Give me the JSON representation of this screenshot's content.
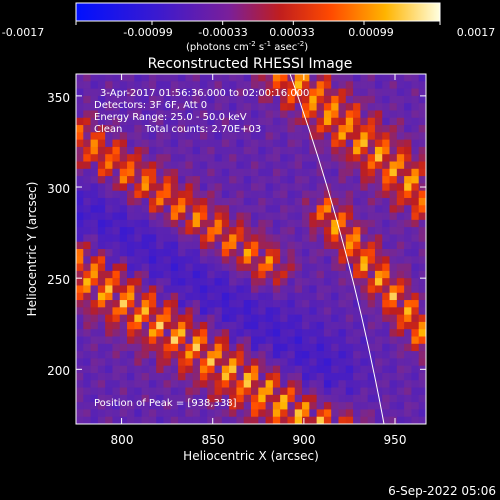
{
  "colorbar": {
    "tick_labels": [
      "-0.0017",
      "-0.00099",
      "-0.00033",
      "0.00033",
      "0.00099",
      "0.0017"
    ],
    "tick_values": [
      -0.0017,
      -0.00099,
      -0.00033,
      0.00033,
      0.00099,
      0.0017
    ],
    "range": [
      -0.0017,
      0.0017
    ],
    "unit_main": "(photons cm",
    "unit_exp1": "-2",
    "unit_mid1": " s",
    "unit_exp2": "-1",
    "unit_mid2": " asec",
    "unit_exp3": "-2",
    "unit_close": ")"
  },
  "chart_data": {
    "type": "heatmap",
    "title": "Reconstructed RHESSI Image",
    "xlabel": "Heliocentric X (arcsec)",
    "ylabel": "Heliocentric Y (arcsec)",
    "xlim": [
      775,
      967
    ],
    "ylim": [
      170,
      362
    ],
    "x_ticks": [
      800,
      850,
      900,
      950
    ],
    "x_tick_labels": [
      "800",
      "850",
      "900",
      "950"
    ],
    "y_ticks": [
      200,
      250,
      300,
      350
    ],
    "y_tick_labels": [
      "200",
      "250",
      "300",
      "350"
    ],
    "colormap": "blue-purple-red-yellow-white",
    "limb_curve": "white arc near x = 890–945",
    "annotations": [
      "3-Apr-2017 01:56:36.000 to 02:00:16.000",
      "Detectors: 3F 6F, Att 0",
      "Energy Range: 25.0 - 50.0 keV",
      "Clean",
      "Total counts: 2.70E+03",
      "Position of Peak = [938,338]"
    ],
    "peak_position": [
      938,
      338
    ]
  },
  "footer": {
    "date": "6-Sep-2022 05:06"
  }
}
